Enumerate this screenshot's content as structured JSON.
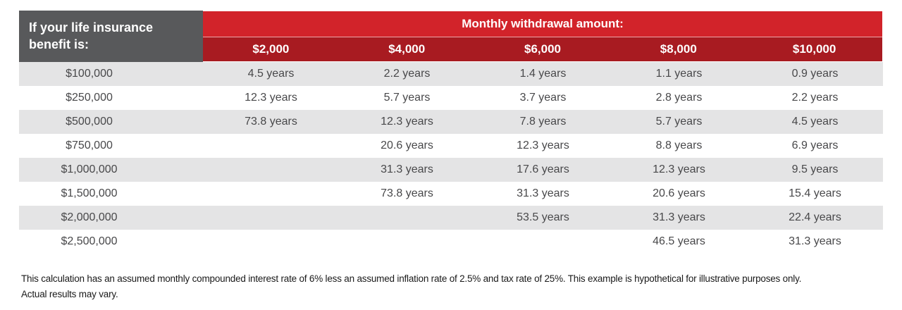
{
  "header": {
    "row_label_title": "If your life insurance benefit is:",
    "group_title": "Monthly withdrawal amount:",
    "columns": [
      "$2,000",
      "$4,000",
      "$6,000",
      "$8,000",
      "$10,000"
    ]
  },
  "chart_data": {
    "type": "table",
    "title": "Monthly withdrawal amount:",
    "row_header": "If your life insurance benefit is:",
    "columns": [
      "$2,000",
      "$4,000",
      "$6,000",
      "$8,000",
      "$10,000"
    ],
    "rows": [
      "$100,000",
      "$250,000",
      "$500,000",
      "$750,000",
      "$1,000,000",
      "$1,500,000",
      "$2,000,000",
      "$2,500,000"
    ],
    "values": [
      [
        "4.5 years",
        "2.2 years",
        "1.4 years",
        "1.1 years",
        "0.9 years"
      ],
      [
        "12.3 years",
        "5.7 years",
        "3.7 years",
        "2.8 years",
        "2.2 years"
      ],
      [
        "73.8 years",
        "12.3 years",
        "7.8 years",
        "5.7 years",
        "4.5 years"
      ],
      [
        "",
        "20.6 years",
        "12.3 years",
        "8.8 years",
        "6.9 years"
      ],
      [
        "",
        "31.3 years",
        "17.6 years",
        "12.3 years",
        "9.5 years"
      ],
      [
        "",
        "73.8 years",
        "31.3 years",
        "20.6 years",
        "15.4 years"
      ],
      [
        "",
        "",
        "53.5 years",
        "31.3 years",
        "22.4 years"
      ],
      [
        "",
        "",
        "",
        "46.5 years",
        "31.3 years"
      ]
    ]
  },
  "rows": [
    {
      "label": "$100,000",
      "values": [
        "4.5 years",
        "2.2 years",
        "1.4 years",
        "1.1 years",
        "0.9 years"
      ]
    },
    {
      "label": "$250,000",
      "values": [
        "12.3 years",
        "5.7 years",
        "3.7 years",
        "2.8 years",
        "2.2 years"
      ]
    },
    {
      "label": "$500,000",
      "values": [
        "73.8 years",
        "12.3 years",
        "7.8 years",
        "5.7 years",
        "4.5 years"
      ]
    },
    {
      "label": "$750,000",
      "values": [
        "",
        "20.6 years",
        "12.3 years",
        "8.8 years",
        "6.9 years"
      ]
    },
    {
      "label": "$1,000,000",
      "values": [
        "",
        "31.3 years",
        "17.6 years",
        "12.3 years",
        "9.5 years"
      ]
    },
    {
      "label": "$1,500,000",
      "values": [
        "",
        "73.8 years",
        "31.3 years",
        "20.6 years",
        "15.4 years"
      ]
    },
    {
      "label": "$2,000,000",
      "values": [
        "",
        "",
        "53.5 years",
        "31.3 years",
        "22.4 years"
      ]
    },
    {
      "label": "$2,500,000",
      "values": [
        "",
        "",
        "",
        "46.5 years",
        "31.3 years"
      ]
    }
  ],
  "footnote_lines": [
    "This calculation has an assumed monthly compounded interest rate of 6% less an assumed inflation rate of 2.5% and tax rate of 25%. This example is hypothetical for illustrative purposes only.",
    "Actual results may vary."
  ],
  "colors": {
    "brand_red": "#D2232A",
    "dark_red": "#A81B21",
    "header_gray": "#58595B",
    "row_stripe": "#E4E4E5"
  }
}
